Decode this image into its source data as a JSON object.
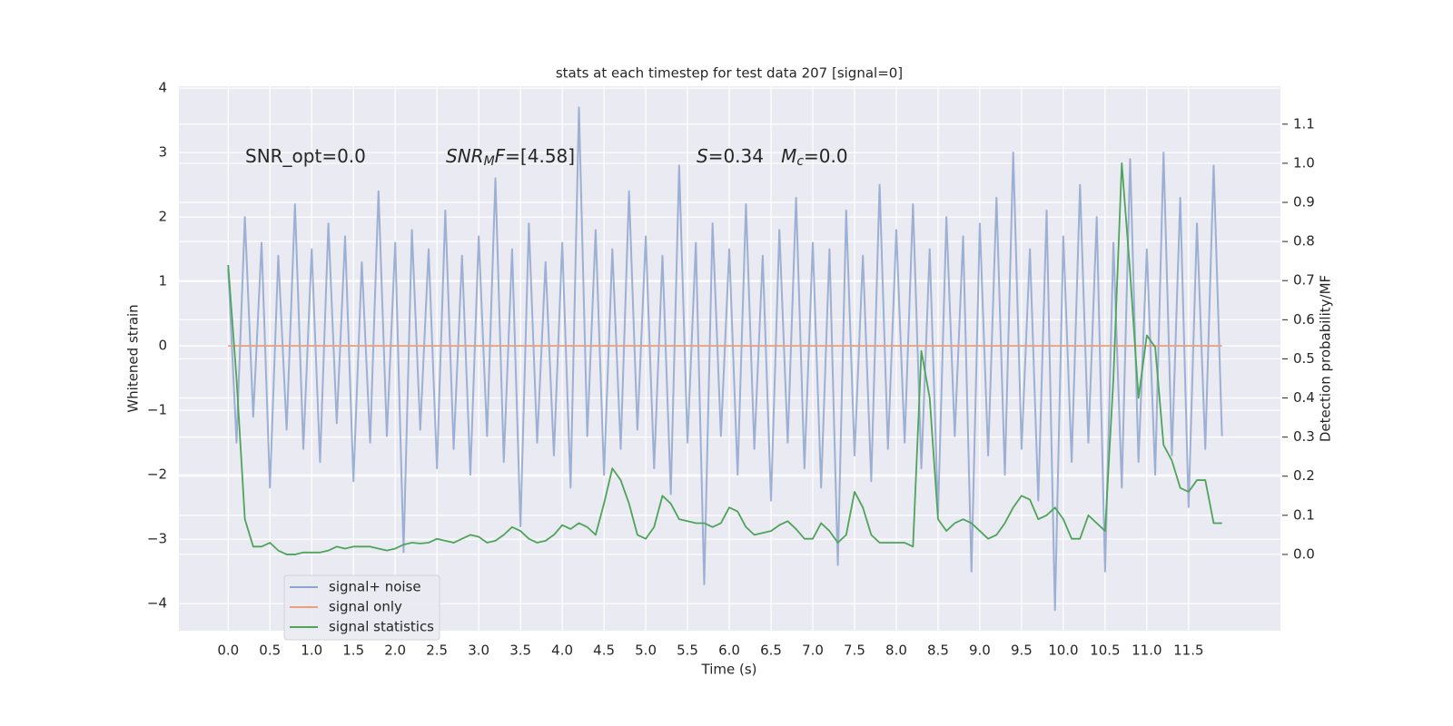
{
  "chart_data": {
    "type": "line",
    "title": "stats at each timestep for test data 207 [signal=0]",
    "xlabel": "Time (s)",
    "ylabel": "Whitened strain",
    "y2label": "Detection probability/MF",
    "x": [
      0,
      0.1,
      0.2,
      0.3,
      0.4,
      0.5,
      0.6,
      0.7,
      0.8,
      0.9,
      1,
      1.1,
      1.2,
      1.3,
      1.4,
      1.5,
      1.6,
      1.7,
      1.8,
      1.9,
      2,
      2.1,
      2.2,
      2.3,
      2.4,
      2.5,
      2.6,
      2.7,
      2.8,
      2.9,
      3,
      3.1,
      3.2,
      3.3,
      3.4,
      3.5,
      3.6,
      3.7,
      3.8,
      3.9,
      4,
      4.1,
      4.2,
      4.3,
      4.4,
      4.5,
      4.6,
      4.7,
      4.8,
      4.9,
      5,
      5.1,
      5.2,
      5.3,
      5.4,
      5.5,
      5.6,
      5.7,
      5.8,
      5.9,
      6,
      6.1,
      6.2,
      6.3,
      6.4,
      6.5,
      6.6,
      6.7,
      6.8,
      6.9,
      7,
      7.1,
      7.2,
      7.3,
      7.4,
      7.5,
      7.6,
      7.7,
      7.8,
      7.9,
      8,
      8.1,
      8.2,
      8.3,
      8.4,
      8.5,
      8.6,
      8.7,
      8.8,
      8.9,
      9,
      9.1,
      9.2,
      9.3,
      9.4,
      9.5,
      9.6,
      9.7,
      9.8,
      9.9,
      10,
      10.1,
      10.2,
      10.3,
      10.4,
      10.5,
      10.6,
      10.7,
      10.8,
      10.9,
      11,
      11.1,
      11.2,
      11.3,
      11.4,
      11.5,
      11.6,
      11.7,
      11.8,
      11.9
    ],
    "series": [
      {
        "name": "signal+ noise",
        "color": "#8fa4cc",
        "values": [
          1.2,
          -1.5,
          2.0,
          -1.1,
          1.6,
          -2.2,
          1.4,
          -1.3,
          2.2,
          -1.6,
          1.5,
          -1.8,
          1.9,
          -1.2,
          1.7,
          -2.1,
          1.3,
          -1.5,
          2.4,
          -1.4,
          1.6,
          -3.2,
          1.8,
          -1.3,
          1.5,
          -1.9,
          2.1,
          -1.6,
          1.4,
          -2.0,
          1.7,
          -1.4,
          2.6,
          -1.8,
          1.5,
          -2.8,
          1.9,
          -1.5,
          1.3,
          -1.7,
          1.6,
          -2.2,
          3.7,
          -1.4,
          1.8,
          -2.0,
          1.5,
          -1.6,
          2.4,
          -1.3,
          1.7,
          -1.9,
          1.4,
          -2.3,
          2.8,
          -1.5,
          1.6,
          -3.7,
          1.9,
          -1.4,
          1.5,
          -2.0,
          2.2,
          -1.6,
          1.4,
          -2.4,
          1.8,
          -1.5,
          2.3,
          -1.9,
          1.6,
          -2.2,
          1.5,
          -3.4,
          2.1,
          -1.7,
          1.4,
          -2.1,
          2.5,
          -1.6,
          1.8,
          -1.5,
          2.2,
          -1.9,
          1.5,
          -2.6,
          2.0,
          -1.4,
          1.7,
          -3.5,
          1.9,
          -1.7,
          2.3,
          -2.0,
          3.0,
          -1.6,
          1.5,
          -2.4,
          2.1,
          -4.1,
          1.7,
          -1.8,
          2.5,
          -1.5,
          2.0,
          -3.5,
          1.6,
          -2.2,
          2.9,
          -1.8,
          1.5,
          -2.0,
          3.0,
          -1.7,
          2.3,
          -2.5,
          1.9,
          -1.6,
          2.8,
          -1.4
        ]
      },
      {
        "name": "signal only",
        "color": "#e8a07f",
        "values": [
          0,
          0,
          0,
          0,
          0,
          0,
          0,
          0,
          0,
          0,
          0,
          0,
          0,
          0,
          0,
          0,
          0,
          0,
          0,
          0,
          0,
          0,
          0,
          0,
          0,
          0,
          0,
          0,
          0,
          0,
          0,
          0,
          0,
          0,
          0,
          0,
          0,
          0,
          0,
          0,
          0,
          0,
          0,
          0,
          0,
          0,
          0,
          0,
          0,
          0,
          0,
          0,
          0,
          0,
          0,
          0,
          0,
          0,
          0,
          0,
          0,
          0,
          0,
          0,
          0,
          0,
          0,
          0,
          0,
          0,
          0,
          0,
          0,
          0,
          0,
          0,
          0,
          0,
          0,
          0,
          0,
          0,
          0,
          0,
          0,
          0,
          0,
          0,
          0,
          0,
          0,
          0,
          0,
          0,
          0,
          0,
          0,
          0,
          0,
          0,
          0,
          0,
          0,
          0,
          0,
          0,
          0,
          0,
          0,
          0,
          0,
          0,
          0,
          0,
          0,
          0,
          0,
          0,
          0,
          0
        ]
      },
      {
        "name": "signal statistics",
        "color": "#4ea45a",
        "axis": "y2",
        "values": [
          0.74,
          0.45,
          0.09,
          0.02,
          0.02,
          0.03,
          0.01,
          0.0,
          0.0,
          0.005,
          0.005,
          0.005,
          0.01,
          0.02,
          0.015,
          0.02,
          0.02,
          0.02,
          0.015,
          0.01,
          0.015,
          0.025,
          0.03,
          0.028,
          0.03,
          0.04,
          0.035,
          0.03,
          0.04,
          0.05,
          0.045,
          0.03,
          0.035,
          0.05,
          0.07,
          0.06,
          0.04,
          0.03,
          0.035,
          0.05,
          0.075,
          0.065,
          0.08,
          0.07,
          0.05,
          0.13,
          0.22,
          0.19,
          0.13,
          0.05,
          0.04,
          0.07,
          0.15,
          0.13,
          0.09,
          0.085,
          0.08,
          0.08,
          0.07,
          0.08,
          0.12,
          0.11,
          0.07,
          0.05,
          0.055,
          0.06,
          0.075,
          0.085,
          0.065,
          0.04,
          0.04,
          0.08,
          0.06,
          0.03,
          0.05,
          0.16,
          0.12,
          0.05,
          0.03,
          0.03,
          0.03,
          0.03,
          0.02,
          0.52,
          0.4,
          0.09,
          0.06,
          0.08,
          0.09,
          0.08,
          0.06,
          0.04,
          0.05,
          0.08,
          0.12,
          0.15,
          0.14,
          0.09,
          0.1,
          0.12,
          0.09,
          0.04,
          0.04,
          0.1,
          0.08,
          0.06,
          0.45,
          1.0,
          0.72,
          0.4,
          0.56,
          0.53,
          0.28,
          0.24,
          0.17,
          0.16,
          0.19,
          0.19,
          0.08,
          0.08
        ]
      }
    ],
    "annotations": [
      [
        {
          "t": "SNR_opt=0.0",
          "style": "normal"
        }
      ],
      [
        {
          "t": "SNR",
          "style": "italic"
        },
        {
          "t": "M",
          "style": "italic-sub"
        },
        {
          "t": "F",
          "style": "italic"
        },
        {
          "t": "=[4.58]",
          "style": "normal"
        }
      ],
      [
        {
          "t": "S",
          "style": "italic"
        },
        {
          "t": "=0.34   ",
          "style": "normal"
        },
        {
          "t": "M",
          "style": "italic"
        },
        {
          "t": "c",
          "style": "italic-sub"
        },
        {
          "t": "=0.0",
          "style": "normal"
        }
      ]
    ],
    "xlim": [
      -0.59,
      12.6
    ],
    "ylim": [
      -4.42,
      4.03
    ],
    "y2lim": [
      -0.195,
      1.197
    ],
    "xticks": [
      {
        "value": 0,
        "label": "0.0"
      },
      0.5,
      {
        "value": 1,
        "label": "1.0"
      },
      1.5,
      {
        "value": 2,
        "label": "2.0"
      },
      2.5,
      {
        "value": 3,
        "label": "3.0"
      },
      3.5,
      {
        "value": 4,
        "label": "4.0"
      },
      4.5,
      {
        "value": 5,
        "label": "5.0"
      },
      5.5,
      {
        "value": 6,
        "label": "6.0"
      },
      6.5,
      {
        "value": 7,
        "label": "7.0"
      },
      7.5,
      {
        "value": 8,
        "label": "8.0"
      },
      8.5,
      {
        "value": 9,
        "label": "9.0"
      },
      9.5,
      {
        "value": 10,
        "label": "10.0"
      },
      10.5,
      {
        "value": 11,
        "label": "11.0"
      },
      11.5
    ],
    "yticks": [
      {
        "value": -4,
        "label": "−4"
      },
      {
        "value": -3,
        "label": "−3"
      },
      {
        "value": -2,
        "label": "−2"
      },
      {
        "value": -1,
        "label": "−1"
      },
      0,
      1,
      2,
      3,
      4
    ],
    "y2ticks": [
      {
        "value": 0,
        "label": "0.0"
      },
      0.1,
      0.2,
      0.3,
      0.4,
      0.5,
      0.6,
      0.7,
      0.8,
      0.9,
      {
        "value": 1,
        "label": "1.0"
      },
      1.1
    ],
    "grid": true,
    "legend": "lower left",
    "background": "#eaeaf2"
  }
}
